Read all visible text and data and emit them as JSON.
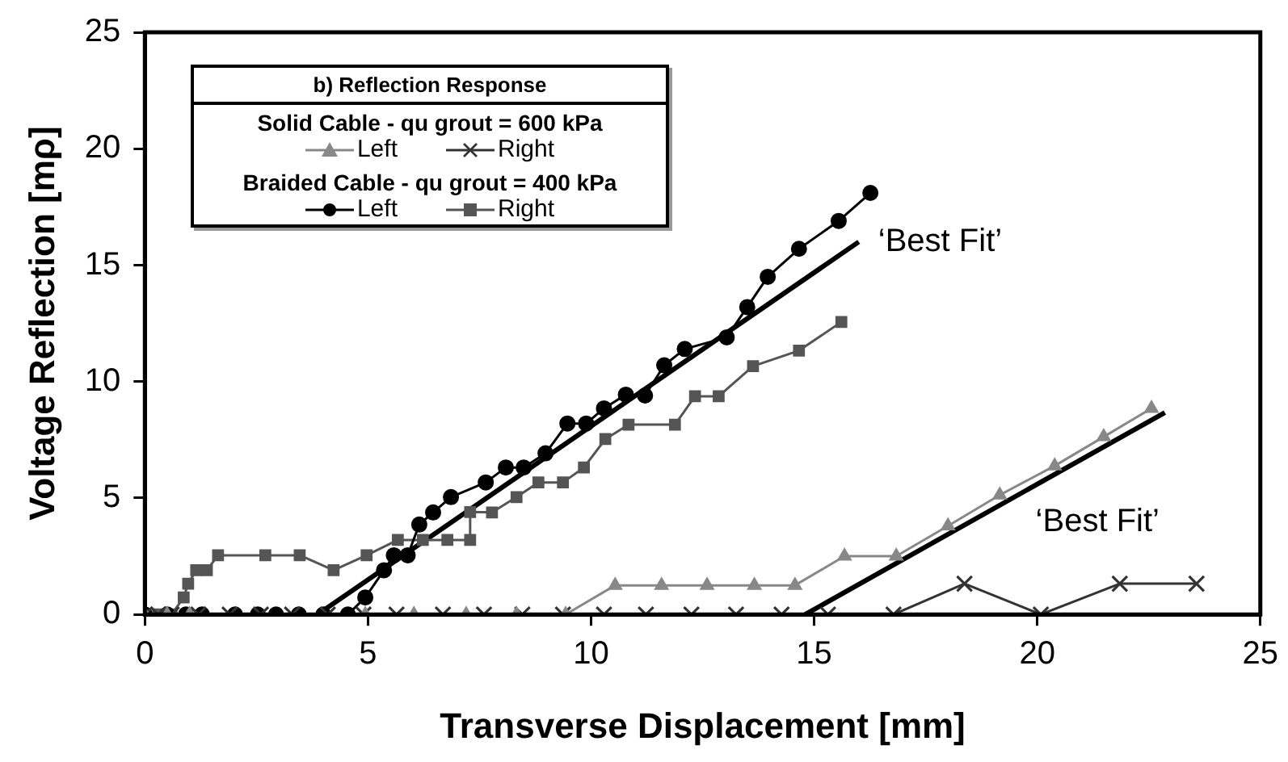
{
  "chart_data": {
    "type": "line",
    "xlabel": "Transverse Displacement [mm]",
    "ylabel": "Voltage Reflection [mρ]",
    "legend_title": "b) Reflection Response",
    "legend": "top left",
    "grid": false,
    "xlim": [
      0,
      25
    ],
    "xticks": [
      0,
      5,
      10,
      15,
      20,
      25
    ],
    "ylim": [
      0,
      25
    ],
    "yticks": [
      0,
      5,
      10,
      15,
      20,
      25
    ],
    "annotations": [
      "Solid Cable - qu grout = 600 kPa",
      "Braided Cable - qu grout = 400 kPa"
    ],
    "series": [
      {
        "name": "Left",
        "color": "#888888",
        "marker": "triangle",
        "x": [
          0,
          0.5,
          1.0,
          4.94,
          6.03,
          7.2,
          8.33,
          9.43,
          10.54,
          11.58,
          12.6,
          13.66,
          14.57,
          15.68,
          16.84,
          18.0,
          19.16,
          20.39,
          21.49,
          22.56
        ],
        "values": [
          0,
          0,
          0,
          0,
          0,
          0,
          0,
          0,
          1.25,
          1.25,
          1.25,
          1.25,
          1.25,
          2.5,
          2.5,
          3.8,
          5.13,
          6.38,
          7.63,
          8.85
        ]
      },
      {
        "name": "Right",
        "color": "#333333",
        "marker": "cross",
        "x": [
          0,
          0.3,
          0.6,
          1.2,
          1.9,
          2.6,
          3.3,
          4.1,
          4.9,
          5.64,
          6.68,
          7.6,
          8.46,
          9.37,
          10.29,
          11.23,
          12.25,
          13.25,
          14.27,
          15.31,
          16.78,
          18.37,
          20.08,
          21.85,
          23.57
        ],
        "values": [
          0,
          0,
          0,
          0,
          0,
          0,
          0,
          0,
          0,
          0,
          0,
          0,
          0,
          0,
          0,
          0,
          0,
          0,
          0,
          0,
          0,
          1.32,
          0,
          1.32,
          1.32
        ]
      },
      {
        "name": "Left",
        "color": "#000000",
        "marker": "circle",
        "x": [
          0,
          0.5,
          0.92,
          1.28,
          2.02,
          2.53,
          2.94,
          3.45,
          4.0,
          4.55,
          4.94,
          5.36,
          5.58,
          5.89,
          6.15,
          6.46,
          6.86,
          7.64,
          8.09,
          8.49,
          8.98,
          9.47,
          9.89,
          10.29,
          10.78,
          11.21,
          11.64,
          12.1,
          13.04,
          13.5,
          13.96,
          14.66,
          15.55,
          16.26
        ],
        "values": [
          0,
          0,
          0,
          0,
          0,
          0,
          0,
          0,
          0,
          0,
          0.73,
          1.9,
          2.54,
          2.54,
          3.86,
          4.38,
          5.04,
          5.67,
          6.31,
          6.31,
          6.92,
          8.2,
          8.2,
          8.85,
          9.44,
          9.4,
          10.7,
          11.4,
          11.9,
          13.2,
          14.5,
          15.7,
          16.9,
          18.1
        ]
      },
      {
        "name": "Right",
        "color": "#555555",
        "marker": "square",
        "x": [
          0,
          0.3,
          0.6,
          0.87,
          0.97,
          1.15,
          1.39,
          1.64,
          2.7,
          3.47,
          4.23,
          4.97,
          5.67,
          6.23,
          6.78,
          7.29,
          7.29,
          7.78,
          8.33,
          8.82,
          9.37,
          9.84,
          10.32,
          10.84,
          11.88,
          12.33,
          12.86,
          13.63,
          14.66,
          15.61
        ],
        "values": [
          0,
          0,
          0,
          0.73,
          1.32,
          1.9,
          1.9,
          2.54,
          2.54,
          2.54,
          1.9,
          2.54,
          3.2,
          3.2,
          3.2,
          3.2,
          4.4,
          4.38,
          5.04,
          5.67,
          5.67,
          6.31,
          7.53,
          8.15,
          8.15,
          9.37,
          9.37,
          10.66,
          11.33,
          12.56
        ]
      },
      {
        "type": "line",
        "name": "‘Best Fit’",
        "color": "#000000",
        "marker": "none",
        "x": [
          3.87,
          16.0
        ],
        "values": [
          0,
          16.0
        ]
      },
      {
        "type": "line",
        "name": "‘Best Fit’",
        "color": "#000000",
        "marker": "none",
        "x": [
          14.8,
          22.86
        ],
        "values": [
          0,
          8.67
        ]
      }
    ]
  }
}
